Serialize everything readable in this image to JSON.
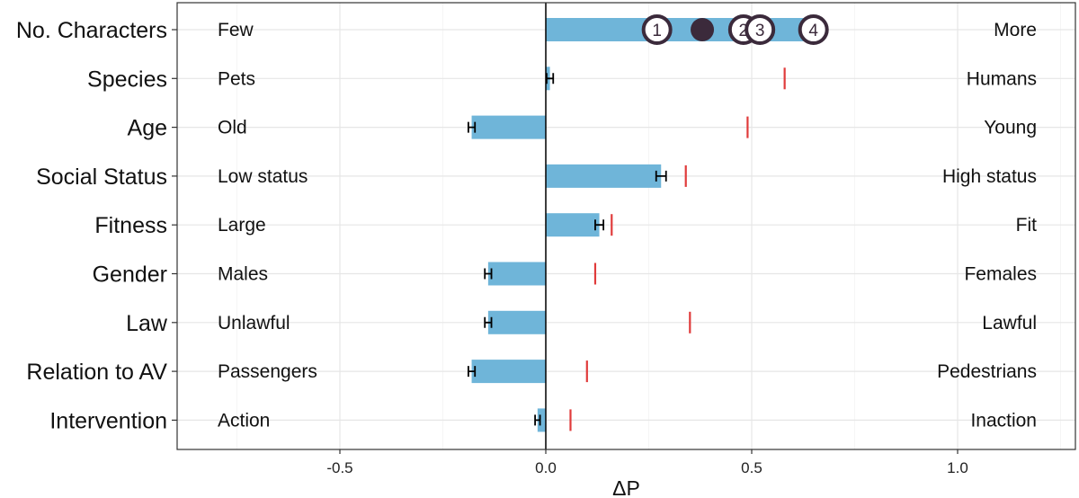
{
  "chart_data": {
    "type": "bar",
    "orientation": "horizontal",
    "xlabel": "ΔP",
    "xlim": [
      -0.9,
      1.3
    ],
    "x_ticks": [
      -0.5,
      0.0,
      0.5,
      1.0
    ],
    "x_tick_labels": [
      "-0.5",
      "0.0",
      "0.5",
      "1.0"
    ],
    "grid": true,
    "categories": [
      "No. Characters",
      "Species",
      "Age",
      "Social Status",
      "Fitness",
      "Gender",
      "Law",
      "Relation to AV",
      "Intervention"
    ],
    "left_labels": [
      "Few",
      "Pets",
      "Old",
      "Low status",
      "Large",
      "Males",
      "Unlawful",
      "Passengers",
      "Action"
    ],
    "right_labels": [
      "More",
      "Humans",
      "Young",
      "High status",
      "Fit",
      "Females",
      "Lawful",
      "Pedestrians",
      "Inaction"
    ],
    "values": [
      0.65,
      0.01,
      -0.18,
      0.28,
      0.13,
      -0.14,
      -0.14,
      -0.18,
      -0.02
    ],
    "errors": [
      0.005,
      0.008,
      0.008,
      0.012,
      0.01,
      0.008,
      0.008,
      0.008,
      0.005
    ],
    "reference_values": [
      0.65,
      0.58,
      0.49,
      0.34,
      0.16,
      0.12,
      0.35,
      0.1,
      0.06
    ],
    "character_markers": [
      {
        "label": "1",
        "value": 0.27,
        "style": "ring"
      },
      {
        "label": "",
        "value": 0.38,
        "style": "filled"
      },
      {
        "label": "2",
        "value": 0.48,
        "style": "ring"
      },
      {
        "label": "3",
        "value": 0.52,
        "style": "ring"
      },
      {
        "label": "4",
        "value": 0.65,
        "style": "ring"
      }
    ],
    "colors": {
      "bar": "#6fb5d9",
      "reference": "#e03b3b",
      "marker": "#3b2a3b",
      "error": "#000000"
    }
  }
}
